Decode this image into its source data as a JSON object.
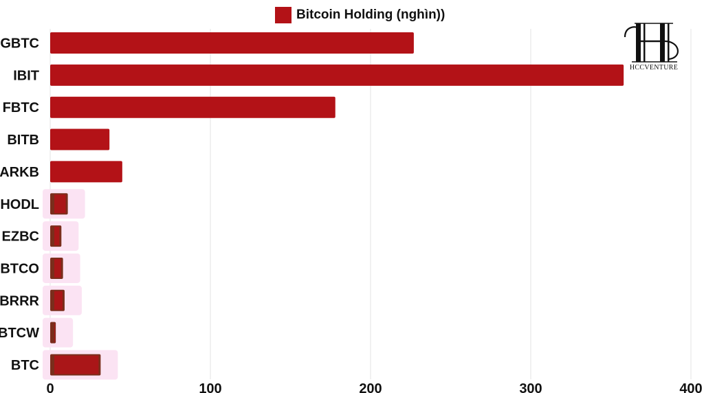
{
  "legend": {
    "label": "Bitcoin Holding (nghìn))"
  },
  "logo": {
    "text": "HCCVENTURE"
  },
  "colors": {
    "bar": "#b31217",
    "dark_bar": "#7a2e1c",
    "highlight": "#fbe3f3",
    "grid": "#e3e3e3"
  },
  "chart_data": {
    "type": "bar",
    "orientation": "horizontal",
    "categories": [
      "GBTC",
      "IBIT",
      "FBTC",
      "BITB",
      "ARKB",
      "HODL",
      "EZBC",
      "BTCO",
      "BRRR",
      "BTCW",
      "BTC"
    ],
    "series": [
      {
        "name": "Bitcoin Holding (nghìn))",
        "values": [
          227,
          358,
          178,
          37,
          45,
          11,
          7,
          8,
          9,
          3.5,
          31.5
        ]
      }
    ],
    "highlighted_categories": [
      "HODL",
      "EZBC",
      "BTCO",
      "BRRR",
      "BTCW",
      "BTC"
    ],
    "xticks": [
      0,
      100,
      200,
      300,
      400
    ],
    "xlim": [
      0,
      400
    ],
    "grid": true,
    "legend_position": "top-center"
  }
}
